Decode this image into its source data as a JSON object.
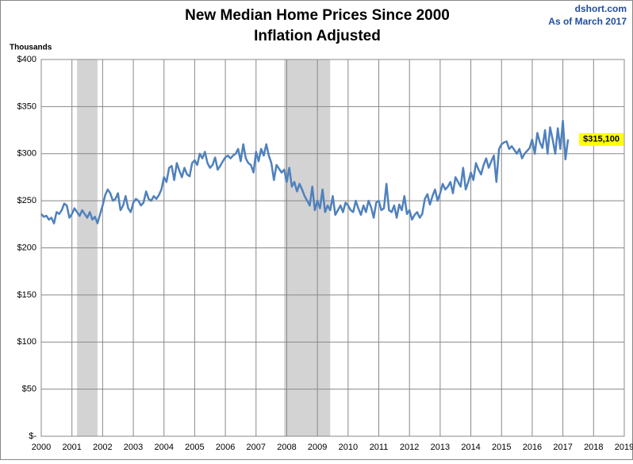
{
  "chart_data": {
    "type": "line",
    "title": "New Median Home Prices Since 2000",
    "subtitle": "Inflation Adjusted",
    "source": "dshort.com",
    "as_of": "As of March 2017",
    "y_axis_label": "Thousands",
    "xlim": [
      2000,
      2019
    ],
    "xticks": [
      2000,
      2001,
      2002,
      2003,
      2004,
      2005,
      2006,
      2007,
      2008,
      2009,
      2010,
      2011,
      2012,
      2013,
      2014,
      2015,
      2016,
      2017,
      2018,
      2019
    ],
    "ylim": [
      0,
      400
    ],
    "yticks": [
      {
        "value": 0,
        "label": "$-"
      },
      {
        "value": 50,
        "label": "$50"
      },
      {
        "value": 100,
        "label": "$100"
      },
      {
        "value": 150,
        "label": "$150"
      },
      {
        "value": 200,
        "label": "$200"
      },
      {
        "value": 250,
        "label": "$250"
      },
      {
        "value": 300,
        "label": "$300"
      },
      {
        "value": 350,
        "label": "$350"
      },
      {
        "value": 400,
        "label": "$400"
      }
    ],
    "grid": true,
    "recessions": [
      [
        2001.167,
        2001.833
      ],
      [
        2007.917,
        2009.417
      ]
    ],
    "recession_color": "#d3d3d3",
    "last_label": {
      "value": 315.1,
      "label": "$315,100"
    },
    "x": [
      2000,
      2000.083,
      2000.167,
      2000.25,
      2000.333,
      2000.417,
      2000.5,
      2000.583,
      2000.667,
      2000.75,
      2000.833,
      2000.917,
      2001,
      2001.083,
      2001.167,
      2001.25,
      2001.333,
      2001.417,
      2001.5,
      2001.583,
      2001.667,
      2001.75,
      2001.833,
      2001.917,
      2002,
      2002.083,
      2002.167,
      2002.25,
      2002.333,
      2002.417,
      2002.5,
      2002.583,
      2002.667,
      2002.75,
      2002.833,
      2002.917,
      2003,
      2003.083,
      2003.167,
      2003.25,
      2003.333,
      2003.417,
      2003.5,
      2003.583,
      2003.667,
      2003.75,
      2003.833,
      2003.917,
      2004,
      2004.083,
      2004.167,
      2004.25,
      2004.333,
      2004.417,
      2004.5,
      2004.583,
      2004.667,
      2004.75,
      2004.833,
      2004.917,
      2005,
      2005.083,
      2005.167,
      2005.25,
      2005.333,
      2005.417,
      2005.5,
      2005.583,
      2005.667,
      2005.75,
      2005.833,
      2005.917,
      2006,
      2006.083,
      2006.167,
      2006.25,
      2006.333,
      2006.417,
      2006.5,
      2006.583,
      2006.667,
      2006.75,
      2006.833,
      2006.917,
      2007,
      2007.083,
      2007.167,
      2007.25,
      2007.333,
      2007.417,
      2007.5,
      2007.583,
      2007.667,
      2007.75,
      2007.833,
      2007.917,
      2008,
      2008.083,
      2008.167,
      2008.25,
      2008.333,
      2008.417,
      2008.5,
      2008.583,
      2008.667,
      2008.75,
      2008.833,
      2008.917,
      2009,
      2009.083,
      2009.167,
      2009.25,
      2009.333,
      2009.417,
      2009.5,
      2009.583,
      2009.667,
      2009.75,
      2009.833,
      2009.917,
      2010,
      2010.083,
      2010.167,
      2010.25,
      2010.333,
      2010.417,
      2010.5,
      2010.583,
      2010.667,
      2010.75,
      2010.833,
      2010.917,
      2011,
      2011.083,
      2011.167,
      2011.25,
      2011.333,
      2011.417,
      2011.5,
      2011.583,
      2011.667,
      2011.75,
      2011.833,
      2011.917,
      2012,
      2012.083,
      2012.167,
      2012.25,
      2012.333,
      2012.417,
      2012.5,
      2012.583,
      2012.667,
      2012.75,
      2012.833,
      2012.917,
      2013,
      2013.083,
      2013.167,
      2013.25,
      2013.333,
      2013.417,
      2013.5,
      2013.583,
      2013.667,
      2013.75,
      2013.833,
      2013.917,
      2014,
      2014.083,
      2014.167,
      2014.25,
      2014.333,
      2014.417,
      2014.5,
      2014.583,
      2014.667,
      2014.75,
      2014.833,
      2014.917,
      2015,
      2015.083,
      2015.167,
      2015.25,
      2015.333,
      2015.417,
      2015.5,
      2015.583,
      2015.667,
      2015.75,
      2015.833,
      2015.917,
      2016,
      2016.083,
      2016.167,
      2016.25,
      2016.333,
      2016.417,
      2016.5,
      2016.583,
      2016.667,
      2016.75,
      2016.833,
      2016.917,
      2017,
      2017.083,
      2017.167
    ],
    "series": [
      {
        "color": "#4f81bd",
        "values": [
          236,
          233,
          234,
          230,
          232,
          226,
          238,
          236,
          240,
          247,
          245,
          232,
          236,
          242,
          238,
          234,
          240,
          236,
          232,
          238,
          230,
          233,
          226,
          236,
          245,
          256,
          262,
          258,
          250,
          252,
          258,
          240,
          245,
          255,
          242,
          238,
          248,
          252,
          250,
          245,
          248,
          260,
          252,
          250,
          255,
          252,
          256,
          262,
          275,
          270,
          285,
          287,
          272,
          290,
          282,
          275,
          285,
          278,
          276,
          290,
          293,
          288,
          300,
          295,
          302,
          290,
          285,
          288,
          296,
          283,
          287,
          292,
          296,
          298,
          295,
          298,
          300,
          305,
          292,
          310,
          295,
          290,
          288,
          280,
          302,
          292,
          305,
          298,
          310,
          298,
          290,
          272,
          288,
          284,
          280,
          283,
          270,
          285,
          265,
          270,
          260,
          268,
          262,
          255,
          250,
          245,
          265,
          240,
          250,
          242,
          262,
          238,
          245,
          240,
          255,
          235,
          240,
          245,
          238,
          248,
          245,
          240,
          238,
          250,
          242,
          235,
          245,
          238,
          250,
          243,
          232,
          248,
          250,
          240,
          242,
          268,
          240,
          238,
          245,
          232,
          246,
          240,
          255,
          236,
          240,
          230,
          235,
          238,
          232,
          236,
          252,
          257,
          246,
          255,
          262,
          250,
          258,
          268,
          262,
          265,
          270,
          258,
          275,
          270,
          265,
          285,
          262,
          270,
          280,
          272,
          290,
          283,
          278,
          288,
          295,
          285,
          292,
          298,
          270,
          305,
          310,
          312,
          313,
          305,
          308,
          304,
          300,
          305,
          295,
          300,
          303,
          306,
          315,
          300,
          322,
          312,
          306,
          325,
          300,
          328,
          315,
          300,
          327,
          305,
          335,
          294,
          315.1
        ]
      }
    ]
  }
}
